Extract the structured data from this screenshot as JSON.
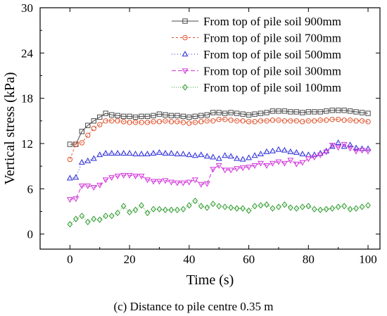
{
  "chart_data": {
    "type": "line",
    "caption": "(c) Distance to pile centre 0.35 m",
    "xlabel": "Time (s)",
    "ylabel": "Vertical stress (kPa)",
    "xlim": [
      -10,
      104
    ],
    "ylim": [
      -2,
      30
    ],
    "xticks": [
      0,
      20,
      40,
      60,
      80,
      100
    ],
    "yticks": [
      0,
      6,
      12,
      18,
      24,
      30
    ],
    "grid": false,
    "legend_position": "top-right",
    "x": [
      0,
      2,
      4,
      6,
      8,
      10,
      12,
      14,
      16,
      18,
      20,
      22,
      24,
      26,
      28,
      30,
      32,
      34,
      36,
      38,
      40,
      42,
      44,
      46,
      48,
      50,
      52,
      54,
      56,
      58,
      60,
      62,
      64,
      66,
      68,
      70,
      72,
      74,
      76,
      78,
      80,
      82,
      84,
      86,
      88,
      90,
      92,
      94,
      96,
      98,
      100
    ],
    "series": [
      {
        "name": "From top of pile soil 900mm",
        "color": "#4a4a4a",
        "dash": "",
        "marker": "square",
        "values": [
          11.9,
          11.9,
          13.6,
          14.4,
          15.0,
          15.5,
          16.0,
          15.8,
          15.7,
          15.6,
          15.6,
          15.5,
          15.6,
          15.6,
          15.7,
          15.9,
          15.8,
          15.7,
          15.7,
          15.6,
          15.5,
          15.6,
          15.7,
          15.8,
          16.1,
          16.1,
          16.0,
          16.1,
          16.0,
          15.9,
          15.8,
          15.9,
          16.0,
          16.1,
          16.3,
          16.3,
          16.3,
          16.2,
          16.2,
          16.1,
          16.2,
          16.2,
          16.2,
          16.3,
          16.4,
          16.4,
          16.4,
          16.3,
          16.2,
          16.1,
          16.0
        ]
      },
      {
        "name": "From top of pile soil 700mm",
        "color": "#e0502a",
        "dash": "3,3",
        "marker": "circle",
        "values": [
          9.9,
          11.9,
          12.1,
          13.1,
          14.0,
          14.5,
          15.0,
          15.0,
          15.0,
          14.9,
          14.8,
          14.8,
          14.8,
          14.8,
          14.9,
          14.9,
          15.0,
          14.9,
          14.9,
          14.8,
          14.7,
          14.8,
          14.9,
          15.0,
          15.0,
          15.2,
          15.2,
          15.1,
          15.0,
          15.0,
          14.9,
          14.9,
          15.0,
          15.0,
          15.1,
          15.1,
          15.0,
          15.0,
          15.0,
          14.9,
          15.0,
          15.0,
          15.1,
          15.1,
          15.2,
          15.2,
          15.1,
          15.1,
          15.0,
          15.0,
          14.9
        ]
      },
      {
        "name": "From top of pile soil 500mm",
        "color": "#2a2ad8",
        "dash": "1,3",
        "marker": "triangle-up",
        "values": [
          7.4,
          7.5,
          9.5,
          9.7,
          10.0,
          10.5,
          10.7,
          10.7,
          10.7,
          10.7,
          10.7,
          10.6,
          10.6,
          10.6,
          10.7,
          10.8,
          10.7,
          10.7,
          10.6,
          10.6,
          10.5,
          10.4,
          10.5,
          10.3,
          10.2,
          10.0,
          10.4,
          10.3,
          10.0,
          9.9,
          10.1,
          10.4,
          10.6,
          10.9,
          11.0,
          11.2,
          11.1,
          10.9,
          10.8,
          10.6,
          10.5,
          10.5,
          10.7,
          11.0,
          11.6,
          12.1,
          11.6,
          11.8,
          11.4,
          11.3,
          11.3
        ]
      },
      {
        "name": "From top of pile soil 300mm",
        "color": "#d030d8",
        "dash": "6,3",
        "marker": "triangle-down",
        "values": [
          4.6,
          4.7,
          6.4,
          6.4,
          6.2,
          6.5,
          7.2,
          7.5,
          7.7,
          7.8,
          7.8,
          7.7,
          7.7,
          7.2,
          7.0,
          7.0,
          7.1,
          6.9,
          6.8,
          6.8,
          6.9,
          7.2,
          6.6,
          6.7,
          8.6,
          9.1,
          8.5,
          8.5,
          8.7,
          8.8,
          8.9,
          9.1,
          9.4,
          9.1,
          9.4,
          9.6,
          9.4,
          9.8,
          9.3,
          9.5,
          10.0,
          10.2,
          10.5,
          10.9,
          11.8,
          11.5,
          11.9,
          11.4,
          11.0,
          11.1,
          11.0
        ]
      },
      {
        "name": "From top of pile soil 100mm",
        "color": "#2a9a2a",
        "dash": "1,2",
        "marker": "diamond",
        "values": [
          1.3,
          2.0,
          2.4,
          1.6,
          2.0,
          1.9,
          2.4,
          2.4,
          2.8,
          3.7,
          2.9,
          3.2,
          3.8,
          2.8,
          3.3,
          3.3,
          3.2,
          3.2,
          3.2,
          3.3,
          3.8,
          4.4,
          3.7,
          3.5,
          4.0,
          3.7,
          3.6,
          3.5,
          3.4,
          3.4,
          3.1,
          3.7,
          3.8,
          3.9,
          3.4,
          3.6,
          3.9,
          3.5,
          3.4,
          3.6,
          3.7,
          3.3,
          3.2,
          3.3,
          3.4,
          3.6,
          3.7,
          3.3,
          3.4,
          3.6,
          3.8
        ]
      }
    ]
  }
}
